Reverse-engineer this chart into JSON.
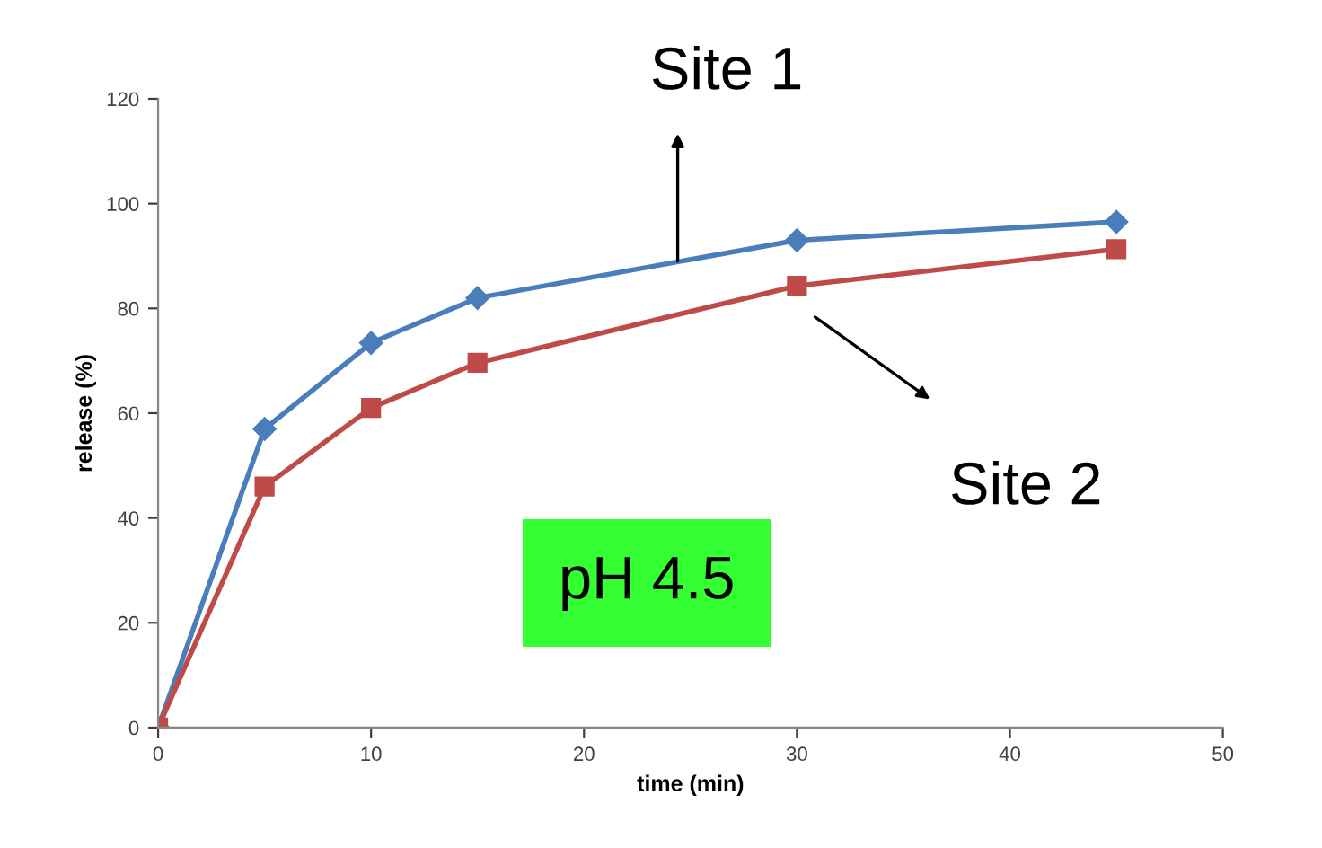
{
  "chart_data": {
    "type": "line",
    "xlabel": "time (min)",
    "ylabel": "release (%)",
    "xlim": [
      0,
      50
    ],
    "xticks": [
      0,
      10,
      20,
      30,
      40,
      50
    ],
    "ylim": [
      0,
      120
    ],
    "yticks": [
      0,
      20,
      40,
      60,
      80,
      100,
      120
    ],
    "grid": false,
    "series": [
      {
        "color": "#4a7ebb",
        "marker": "diamond",
        "x": [
          0,
          5,
          10,
          15,
          30,
          45
        ],
        "values": [
          0,
          57,
          73.4,
          82,
          93,
          96.5
        ]
      },
      {
        "color": "#be4b48",
        "marker": "square",
        "x": [
          0,
          5,
          10,
          15,
          30,
          45
        ],
        "values": [
          0,
          46,
          61,
          69.6,
          84.3,
          91.3
        ]
      }
    ],
    "annotations": [
      "Site 1",
      "Site 2",
      "pH 4.5"
    ]
  }
}
